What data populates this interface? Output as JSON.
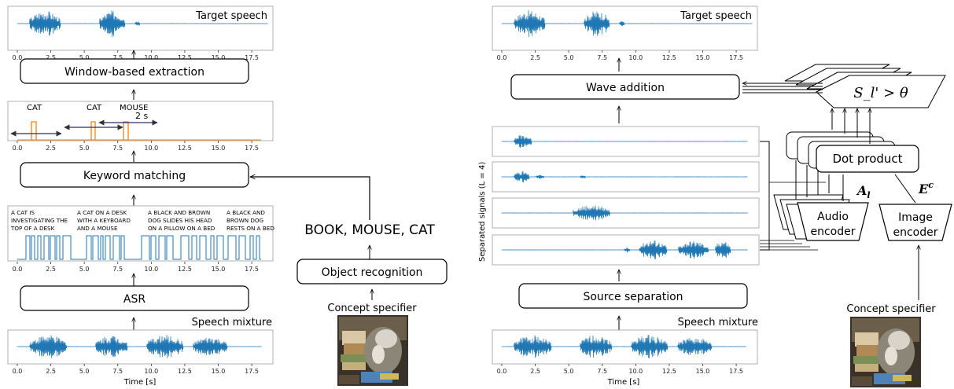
{
  "left_panel": {
    "top_plot": {
      "label": "Target speech"
    },
    "window_box": {
      "label": "Window-based extraction"
    },
    "detection_plot": {
      "keywords": [
        {
          "text": "CAT"
        },
        {
          "text": "CAT"
        },
        {
          "text": "MOUSE"
        }
      ],
      "window_label": "2 s"
    },
    "keyword_box": {
      "label": "Keyword matching"
    },
    "caption_plot": {
      "captions": [
        {
          "lines": [
            "A CAT IS",
            "INVESTIGATING THE",
            "TOP OF A DESK"
          ]
        },
        {
          "lines": [
            "A CAT ON A DESK",
            "WITH A KEYBOARD",
            "AND A MOUSE"
          ]
        },
        {
          "lines": [
            "A BLACK AND BROWN",
            "DOG SLIDES HIS HEAD",
            "ON A PILLOW ON A BED"
          ]
        },
        {
          "lines": [
            "A BLACK AND",
            "BROWN DOG",
            "RESTS ON A BED"
          ]
        }
      ]
    },
    "asr_box": {
      "label": "ASR"
    },
    "mixture_plot": {
      "label": "Speech mixture",
      "xlabel": "Time [s]"
    },
    "objects_text": "BOOK, MOUSE, CAT",
    "object_box": {
      "label": "Object recognition"
    },
    "concept_label": "Concept specifier"
  },
  "right_panel": {
    "top_plot": {
      "label": "Target speech"
    },
    "wave_box": {
      "label": "Wave addition"
    },
    "separated_label": "Separated signals (L = 4)",
    "threshold_label": "S_l' > θ",
    "dot_box": {
      "label": "Dot product"
    },
    "al_label": "A",
    "al_sub": "l",
    "ec_label": "E",
    "ec_sup": "c",
    "audio_encoder": {
      "line1": "Audio",
      "line2": "encoder"
    },
    "image_encoder": {
      "line1": "Image",
      "line2": "encoder"
    },
    "source_box": {
      "label": "Source separation"
    },
    "mixture_plot": {
      "label": "Speech mixture",
      "xlabel": "Time [s]"
    },
    "concept_label": "Concept specifier"
  },
  "axis": {
    "ticks": [
      "0.0",
      "2.5",
      "5.0",
      "7.5",
      "10.0",
      "12.5",
      "15.0",
      "17.5"
    ]
  },
  "colors": {
    "waveform": "#1f77b4",
    "detection": "#ff7f0e",
    "box_stroke": "#000000",
    "plot_frame": "#b0b0b0"
  }
}
